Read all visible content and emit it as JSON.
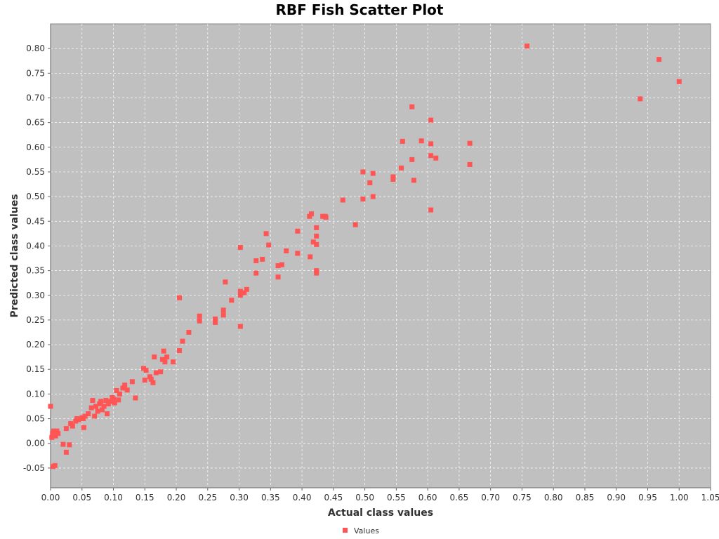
{
  "chart_data": {
    "type": "scatter",
    "title": "RBF Fish Scatter Plot",
    "xlabel": "Actual class values",
    "ylabel": "Predicted class values",
    "xlim": [
      0,
      1.05
    ],
    "ylim": [
      -0.09,
      0.85
    ],
    "x_ticks": [
      "0.00",
      "0.05",
      "0.10",
      "0.15",
      "0.20",
      "0.25",
      "0.30",
      "0.35",
      "0.40",
      "0.45",
      "0.50",
      "0.55",
      "0.60",
      "0.65",
      "0.70",
      "0.75",
      "0.80",
      "0.85",
      "0.90",
      "0.95",
      "1.00",
      "1.05"
    ],
    "y_ticks": [
      "-0.05",
      "0.00",
      "0.05",
      "0.10",
      "0.15",
      "0.20",
      "0.25",
      "0.30",
      "0.35",
      "0.40",
      "0.45",
      "0.50",
      "0.55",
      "0.60",
      "0.65",
      "0.70",
      "0.75",
      "0.80"
    ],
    "grid": true,
    "legend_position": "bottom-center",
    "plot_background": "#c0c0c0",
    "series": [
      {
        "name": "Values",
        "color": "#ff5555",
        "points": [
          [
            0.0,
            0.075
          ],
          [
            0.002,
            0.012
          ],
          [
            0.003,
            0.02
          ],
          [
            0.005,
            0.025
          ],
          [
            0.006,
            0.018
          ],
          [
            0.008,
            0.015
          ],
          [
            0.01,
            0.025
          ],
          [
            0.012,
            0.02
          ],
          [
            0.004,
            -0.047
          ],
          [
            0.007,
            -0.045
          ],
          [
            0.02,
            -0.002
          ],
          [
            0.025,
            -0.018
          ],
          [
            0.03,
            -0.003
          ],
          [
            0.025,
            0.03
          ],
          [
            0.032,
            0.04
          ],
          [
            0.035,
            0.035
          ],
          [
            0.04,
            0.045
          ],
          [
            0.042,
            0.05
          ],
          [
            0.045,
            0.048
          ],
          [
            0.05,
            0.052
          ],
          [
            0.052,
            0.05
          ],
          [
            0.055,
            0.055
          ],
          [
            0.053,
            0.032
          ],
          [
            0.06,
            0.06
          ],
          [
            0.065,
            0.072
          ],
          [
            0.067,
            0.087
          ],
          [
            0.07,
            0.055
          ],
          [
            0.072,
            0.075
          ],
          [
            0.075,
            0.065
          ],
          [
            0.078,
            0.08
          ],
          [
            0.08,
            0.085
          ],
          [
            0.082,
            0.068
          ],
          [
            0.085,
            0.075
          ],
          [
            0.088,
            0.087
          ],
          [
            0.09,
            0.06
          ],
          [
            0.092,
            0.08
          ],
          [
            0.095,
            0.085
          ],
          [
            0.098,
            0.093
          ],
          [
            0.1,
            0.09
          ],
          [
            0.102,
            0.082
          ],
          [
            0.105,
            0.107
          ],
          [
            0.108,
            0.088
          ],
          [
            0.11,
            0.1
          ],
          [
            0.115,
            0.112
          ],
          [
            0.118,
            0.118
          ],
          [
            0.122,
            0.108
          ],
          [
            0.13,
            0.125
          ],
          [
            0.135,
            0.092
          ],
          [
            0.148,
            0.152
          ],
          [
            0.15,
            0.128
          ],
          [
            0.152,
            0.148
          ],
          [
            0.158,
            0.135
          ],
          [
            0.16,
            0.13
          ],
          [
            0.163,
            0.123
          ],
          [
            0.165,
            0.175
          ],
          [
            0.168,
            0.143
          ],
          [
            0.175,
            0.145
          ],
          [
            0.178,
            0.17
          ],
          [
            0.18,
            0.187
          ],
          [
            0.182,
            0.165
          ],
          [
            0.185,
            0.175
          ],
          [
            0.195,
            0.165
          ],
          [
            0.205,
            0.295
          ],
          [
            0.205,
            0.188
          ],
          [
            0.21,
            0.207
          ],
          [
            0.22,
            0.225
          ],
          [
            0.237,
            0.258
          ],
          [
            0.237,
            0.248
          ],
          [
            0.262,
            0.252
          ],
          [
            0.262,
            0.245
          ],
          [
            0.275,
            0.27
          ],
          [
            0.275,
            0.26
          ],
          [
            0.278,
            0.327
          ],
          [
            0.288,
            0.29
          ],
          [
            0.302,
            0.397
          ],
          [
            0.302,
            0.308
          ],
          [
            0.302,
            0.3
          ],
          [
            0.302,
            0.237
          ],
          [
            0.308,
            0.305
          ],
          [
            0.312,
            0.312
          ],
          [
            0.327,
            0.37
          ],
          [
            0.327,
            0.345
          ],
          [
            0.337,
            0.373
          ],
          [
            0.343,
            0.425
          ],
          [
            0.347,
            0.402
          ],
          [
            0.362,
            0.337
          ],
          [
            0.362,
            0.36
          ],
          [
            0.368,
            0.362
          ],
          [
            0.375,
            0.39
          ],
          [
            0.393,
            0.43
          ],
          [
            0.393,
            0.385
          ],
          [
            0.412,
            0.46
          ],
          [
            0.413,
            0.378
          ],
          [
            0.415,
            0.465
          ],
          [
            0.418,
            0.408
          ],
          [
            0.423,
            0.437
          ],
          [
            0.423,
            0.42
          ],
          [
            0.423,
            0.403
          ],
          [
            0.423,
            0.35
          ],
          [
            0.423,
            0.345
          ],
          [
            0.433,
            0.46
          ],
          [
            0.437,
            0.46
          ],
          [
            0.438,
            0.458
          ],
          [
            0.465,
            0.493
          ],
          [
            0.485,
            0.443
          ],
          [
            0.497,
            0.55
          ],
          [
            0.497,
            0.495
          ],
          [
            0.508,
            0.528
          ],
          [
            0.513,
            0.547
          ],
          [
            0.513,
            0.5
          ],
          [
            0.545,
            0.54
          ],
          [
            0.545,
            0.535
          ],
          [
            0.558,
            0.558
          ],
          [
            0.56,
            0.612
          ],
          [
            0.575,
            0.682
          ],
          [
            0.575,
            0.575
          ],
          [
            0.578,
            0.533
          ],
          [
            0.59,
            0.613
          ],
          [
            0.605,
            0.655
          ],
          [
            0.605,
            0.607
          ],
          [
            0.605,
            0.583
          ],
          [
            0.605,
            0.473
          ],
          [
            0.613,
            0.578
          ],
          [
            0.667,
            0.608
          ],
          [
            0.667,
            0.565
          ],
          [
            0.758,
            0.805
          ],
          [
            0.938,
            0.698
          ],
          [
            0.968,
            0.778
          ],
          [
            1.0,
            0.733
          ]
        ]
      }
    ]
  }
}
